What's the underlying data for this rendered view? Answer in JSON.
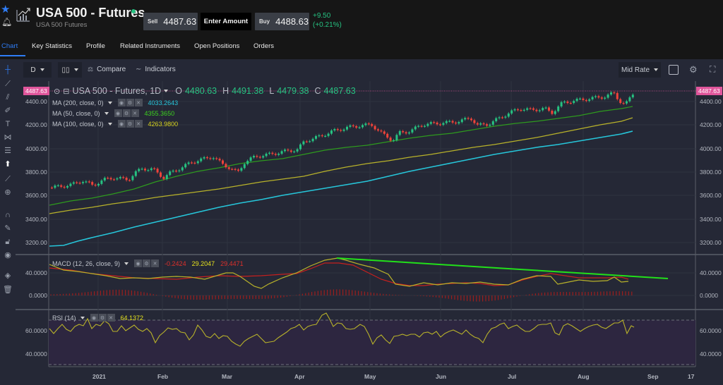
{
  "header": {
    "title": "USA 500 - Futures",
    "subtitle": "USA 500 Futures",
    "sell_label": "Sell",
    "sell_price": "4487.63",
    "enter_amount": "Enter Amount",
    "buy_label": "Buy",
    "buy_price": "4488.63",
    "change_abs": "+9.50",
    "change_pct": "(+0.21%)",
    "status_color": "#26c281"
  },
  "tabs": [
    {
      "label": "Chart",
      "active": true
    },
    {
      "label": "Key Statistics"
    },
    {
      "label": "Profile"
    },
    {
      "label": "Related Instruments"
    },
    {
      "label": "Open Positions"
    },
    {
      "label": "Orders"
    }
  ],
  "toolbar": {
    "interval": "D",
    "chart_type_icon": "candlestick-icon",
    "compare": "Compare",
    "indicators": "Indicators",
    "rate_mode": "Mid Rate"
  },
  "sidebar_icons": [
    "crosshair-icon",
    "line-icon",
    "fib-icon",
    "brush-icon",
    "text-icon",
    "pattern-icon",
    "measure-icon",
    "arrow-up-icon",
    "ruler-icon",
    "zoom-in-icon",
    "magnet-icon",
    "pencil-lock-icon",
    "unlock-icon",
    "eye-icon",
    "layers-icon",
    "trash-icon"
  ],
  "main_chart": {
    "symbol_line": "USA 500 - Futures, 1D",
    "open_label": "O",
    "open": "4480.63",
    "high_label": "H",
    "high": "4491.38",
    "low_label": "L",
    "low": "4479.38",
    "close_label": "C",
    "close": "4487.63",
    "last_price_tag": "4487.63",
    "indicators": [
      {
        "label": "MA (200, close, 0)",
        "value": "4033.2643",
        "color": "#26c6da"
      },
      {
        "label": "MA (50, close, 0)",
        "value": "4355.3650",
        "color": "#3cd11e"
      },
      {
        "label": "MA (100, close, 0)",
        "value": "4263.9800",
        "color": "#d6d21e"
      }
    ],
    "y_ticks": [
      "4400.00",
      "4200.00",
      "4000.00",
      "3800.00",
      "3600.00",
      "3400.00",
      "3200.00"
    ]
  },
  "macd": {
    "label": "MACD (12, 26, close, 9)",
    "hist": "-0.2424",
    "macd": "29.2047",
    "signal": "29.4471",
    "y_ticks": [
      "40.0000",
      "0.0000"
    ]
  },
  "rsi": {
    "label": "RSI (14)",
    "value": "64.1372",
    "y_ticks": [
      "60.0000",
      "40.0000"
    ]
  },
  "x_axis": [
    "2021",
    "Feb",
    "Mar",
    "Apr",
    "May",
    "Jun",
    "Jul",
    "Aug",
    "Sep",
    "17"
  ],
  "colors": {
    "accent": "#2f7df6",
    "up": "#26c281",
    "down": "#f0433a",
    "ma200": "#26c6da",
    "ma50": "#2e9a1e",
    "ma100": "#b8b22a",
    "macd_line": "#b8b22a",
    "signal_line": "#c8201e",
    "trendline": "#22e01a",
    "price_tag": "#e0559b"
  }
}
